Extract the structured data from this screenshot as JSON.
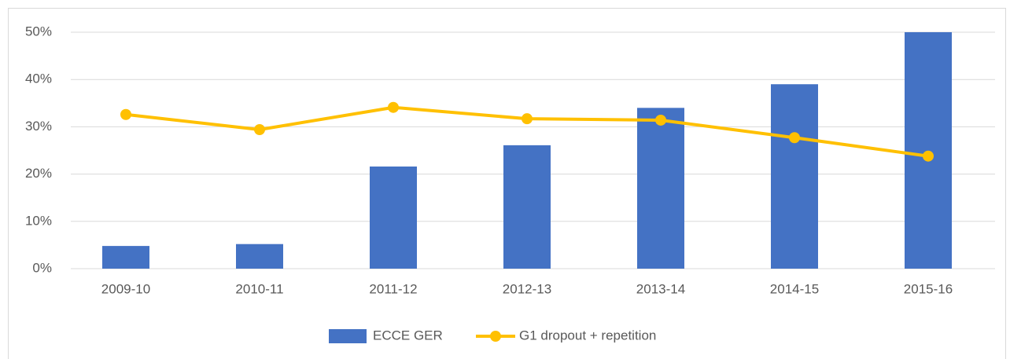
{
  "chart_data": {
    "type": "combo",
    "categories": [
      "2009-10",
      "2010-11",
      "2011-12",
      "2012-13",
      "2013-14",
      "2014-15",
      "2015-16"
    ],
    "series": [
      {
        "name": "ECCE GER",
        "type": "bar",
        "color": "#4472c4",
        "values": [
          4.8,
          5.2,
          21.6,
          26.1,
          34.0,
          39.0,
          50.0
        ]
      },
      {
        "name": "G1 dropout + repetition",
        "type": "line",
        "color": "#ffc000",
        "values": [
          32.6,
          29.4,
          34.1,
          31.7,
          31.4,
          27.7,
          23.8
        ]
      }
    ],
    "ylim": [
      0,
      50
    ],
    "yticks": [
      {
        "value": 0,
        "label": "0%"
      },
      {
        "value": 10,
        "label": "10%"
      },
      {
        "value": 20,
        "label": "20%"
      },
      {
        "value": 30,
        "label": "30%"
      },
      {
        "value": 40,
        "label": "40%"
      },
      {
        "value": 50,
        "label": "50%"
      }
    ],
    "grid": true,
    "legend": "bottom"
  }
}
